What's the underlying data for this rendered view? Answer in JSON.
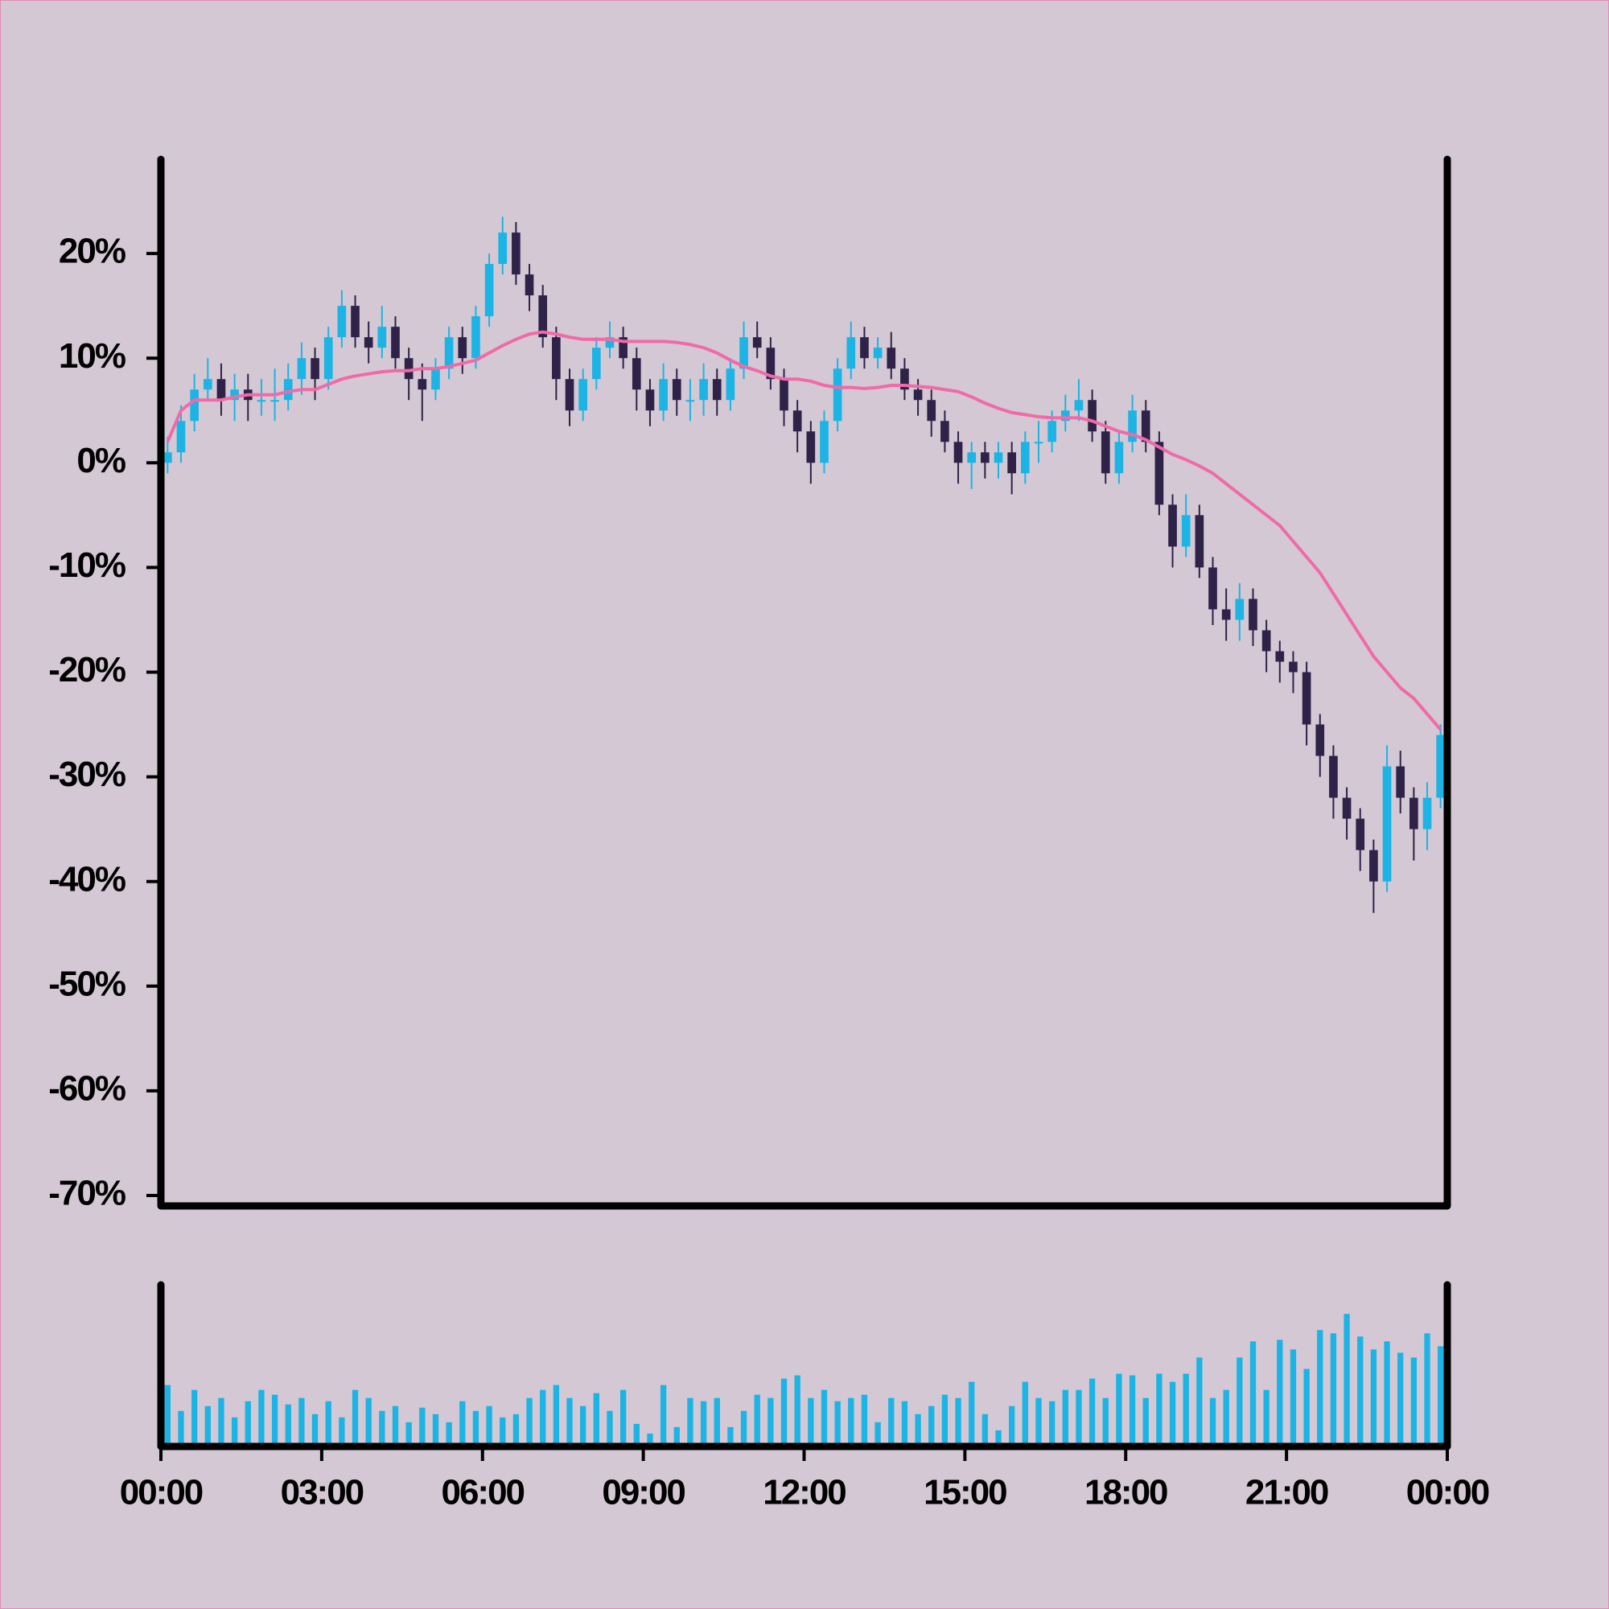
{
  "chart_data": {
    "type": "candlestick",
    "x": [
      0.125,
      0.375,
      0.625,
      0.875,
      1.125,
      1.375,
      1.625,
      1.875,
      2.125,
      2.375,
      2.625,
      2.875,
      3.125,
      3.375,
      3.625,
      3.875,
      4.125,
      4.375,
      4.625,
      4.875,
      5.125,
      5.375,
      5.625,
      5.875,
      6.125,
      6.375,
      6.625,
      6.875,
      7.125,
      7.375,
      7.625,
      7.875,
      8.125,
      8.375,
      8.625,
      8.875,
      9.125,
      9.375,
      9.625,
      9.875,
      10.125,
      10.375,
      10.625,
      10.875,
      11.125,
      11.375,
      11.625,
      11.875,
      12.125,
      12.375,
      12.625,
      12.875,
      13.125,
      13.375,
      13.625,
      13.875,
      14.125,
      14.375,
      14.625,
      14.875,
      15.125,
      15.375,
      15.625,
      15.875,
      16.125,
      16.375,
      16.625,
      16.875,
      17.125,
      17.375,
      17.625,
      17.875,
      18.125,
      18.375,
      18.625,
      18.875,
      19.125,
      19.375,
      19.625,
      19.875,
      20.125,
      20.375,
      20.625,
      20.875,
      21.125,
      21.375,
      21.625,
      21.875,
      22.125,
      22.375,
      22.625,
      22.875,
      23.125,
      23.375,
      23.625,
      23.875
    ],
    "open": [
      0,
      1,
      4,
      7,
      8,
      6,
      7,
      6,
      6,
      6,
      8,
      10,
      8,
      12,
      15,
      12,
      11,
      13,
      10,
      8,
      7,
      9,
      12,
      10,
      14,
      19,
      22,
      18,
      16,
      12,
      8,
      5,
      8,
      11,
      12,
      10,
      7,
      5,
      8,
      6,
      6,
      8,
      6,
      9,
      12,
      11,
      8,
      5,
      3,
      0,
      4,
      9,
      12,
      10,
      11,
      9,
      7,
      6,
      4,
      2,
      0,
      1,
      0,
      1,
      -1,
      2,
      2,
      4,
      5,
      6,
      3,
      -1,
      2,
      5,
      2,
      -4,
      -8,
      -5,
      -10,
      -14,
      -15,
      -13,
      -16,
      -18,
      -19,
      -20,
      -25,
      -28,
      -32,
      -34,
      -37,
      -40,
      -29,
      -32,
      -35,
      -32
    ],
    "high": [
      2.5,
      5.5,
      8.5,
      10,
      9.5,
      8.5,
      8.5,
      8,
      9,
      9.5,
      11.5,
      11,
      13,
      16.5,
      16,
      13.5,
      15,
      14,
      11,
      9.5,
      10,
      13,
      13,
      15,
      20,
      23.5,
      23,
      19,
      17,
      13,
      9,
      9,
      12,
      13.5,
      13,
      11,
      8,
      9.5,
      9,
      8,
      9.5,
      9,
      10,
      13.5,
      13.5,
      12,
      9,
      6,
      4,
      5,
      10,
      13.5,
      13,
      12,
      12.5,
      10,
      8,
      7,
      5,
      3,
      2,
      2,
      2,
      2,
      3,
      4,
      5,
      6.5,
      8,
      7,
      4,
      3,
      6.5,
      6,
      3,
      -3,
      -3,
      -4,
      -9,
      -12,
      -11.5,
      -12,
      -15,
      -17,
      -18,
      -19,
      -24,
      -27,
      -31,
      -33,
      -36,
      -27,
      -27.5,
      -31,
      -30.5,
      -25
    ],
    "low": [
      -1,
      0,
      3,
      6,
      4.5,
      4,
      4,
      4.5,
      4,
      5,
      6.5,
      6,
      7,
      11,
      11,
      9.5,
      10,
      9,
      6,
      4,
      6,
      8,
      8.5,
      9,
      13,
      18,
      17,
      14.5,
      11,
      6,
      3.5,
      4,
      7,
      10,
      9,
      5,
      3.5,
      4,
      4.5,
      4,
      4.5,
      4.5,
      5,
      8,
      10,
      7,
      3.5,
      1,
      -2,
      -1,
      3,
      8,
      9,
      9,
      8,
      6,
      4.5,
      2.5,
      1,
      -2,
      -2.5,
      -1.5,
      -1.5,
      -3,
      -2,
      0,
      1,
      3,
      4,
      2,
      -2,
      -2,
      1,
      1,
      -5,
      -10,
      -9,
      -11,
      -15.5,
      -17,
      -17,
      -17.5,
      -20,
      -21,
      -22,
      -27,
      -30,
      -34,
      -36,
      -39,
      -43,
      -41,
      -33.5,
      -38,
      -37,
      -33
    ],
    "close": [
      1,
      4,
      7,
      8,
      6,
      7,
      6,
      6,
      6,
      8,
      10,
      8,
      12,
      15,
      12,
      11,
      13,
      10,
      8,
      7,
      9,
      12,
      10,
      14,
      19,
      22,
      18,
      16,
      12,
      8,
      5,
      8,
      11,
      12,
      10,
      7,
      5,
      8,
      6,
      6,
      8,
      6,
      9,
      12,
      11,
      8,
      5,
      3,
      0,
      4,
      9,
      12,
      10,
      11,
      9,
      7,
      6,
      4,
      2,
      0,
      1,
      0,
      1,
      -1,
      2,
      2,
      4,
      5,
      6,
      3,
      -1,
      2,
      5,
      2,
      -4,
      -8,
      -5,
      -10,
      -14,
      -15,
      -13,
      -16,
      -18,
      -19,
      -20,
      -25,
      -28,
      -32,
      -34,
      -37,
      -40,
      -29,
      -32,
      -35,
      -32,
      -26
    ],
    "up_color": "#1cb4e4",
    "down_color": "#2e2248",
    "moving_average": {
      "color": "#f06aa8",
      "values": [
        2,
        5,
        6,
        6,
        6,
        6.3,
        6.5,
        6.5,
        6.5,
        6.8,
        7,
        7,
        7.5,
        8,
        8.3,
        8.5,
        8.7,
        8.8,
        8.8,
        9,
        9,
        9.2,
        9.5,
        9.8,
        10.5,
        11.2,
        11.8,
        12.3,
        12.5,
        12.3,
        12,
        11.8,
        11.8,
        11.8,
        11.6,
        11.6,
        11.6,
        11.6,
        11.5,
        11.3,
        11,
        10.5,
        9.8,
        9.2,
        8.8,
        8.3,
        8,
        8,
        7.8,
        7.4,
        7.2,
        7.2,
        7.1,
        7.2,
        7.4,
        7.4,
        7.3,
        7.2,
        7,
        6.8,
        6.3,
        5.7,
        5.2,
        4.8,
        4.6,
        4.4,
        4.3,
        4.3,
        4.3,
        4,
        3.5,
        3,
        2.7,
        2.2,
        1.5,
        0.8,
        0.3,
        -0.3,
        -1,
        -2,
        -3,
        -4,
        -5,
        -6,
        -7.5,
        -9,
        -10.5,
        -12.5,
        -14.5,
        -16.5,
        -18.5,
        -20,
        -21.5,
        -22.5,
        -24,
        -25.5
      ]
    },
    "volume": {
      "color": "#1cb4e4",
      "ylim": [
        0,
        100
      ],
      "values": [
        38,
        22,
        35,
        25,
        30,
        18,
        28,
        35,
        32,
        26,
        30,
        20,
        28,
        18,
        35,
        30,
        22,
        25,
        15,
        24,
        20,
        15,
        28,
        22,
        25,
        18,
        20,
        30,
        35,
        38,
        30,
        25,
        33,
        22,
        35,
        14,
        8,
        38,
        12,
        30,
        28,
        30,
        12,
        22,
        32,
        30,
        42,
        44,
        30,
        35,
        28,
        30,
        32,
        15,
        30,
        28,
        20,
        25,
        32,
        30,
        40,
        20,
        10,
        25,
        40,
        30,
        28,
        35,
        35,
        42,
        30,
        45,
        44,
        30,
        45,
        40,
        45,
        55,
        30,
        35,
        55,
        65,
        35,
        66,
        60,
        48,
        72,
        70,
        82,
        68,
        60,
        65,
        58,
        55,
        70,
        62
      ]
    },
    "xlim": [
      0,
      24
    ],
    "xticks": [
      {
        "value": 0,
        "label": "00:00"
      },
      {
        "value": 3,
        "label": "03:00"
      },
      {
        "value": 6,
        "label": "06:00"
      },
      {
        "value": 9,
        "label": "09:00"
      },
      {
        "value": 12,
        "label": "12:00"
      },
      {
        "value": 15,
        "label": "15:00"
      },
      {
        "value": 18,
        "label": "18:00"
      },
      {
        "value": 21,
        "label": "21:00"
      },
      {
        "value": 24,
        "label": "00:00"
      }
    ],
    "ylim": [
      -71,
      29
    ],
    "yticks": [
      {
        "value": 20,
        "label": "20%"
      },
      {
        "value": 10,
        "label": "10%"
      },
      {
        "value": 0,
        "label": "0%"
      },
      {
        "value": -10,
        "label": "-10%"
      },
      {
        "value": -20,
        "label": "-20%"
      },
      {
        "value": -30,
        "label": "-30%"
      },
      {
        "value": -40,
        "label": "-40%"
      },
      {
        "value": -50,
        "label": "-50%"
      },
      {
        "value": -60,
        "label": "-60%"
      },
      {
        "value": -70,
        "label": "-70%"
      }
    ]
  }
}
